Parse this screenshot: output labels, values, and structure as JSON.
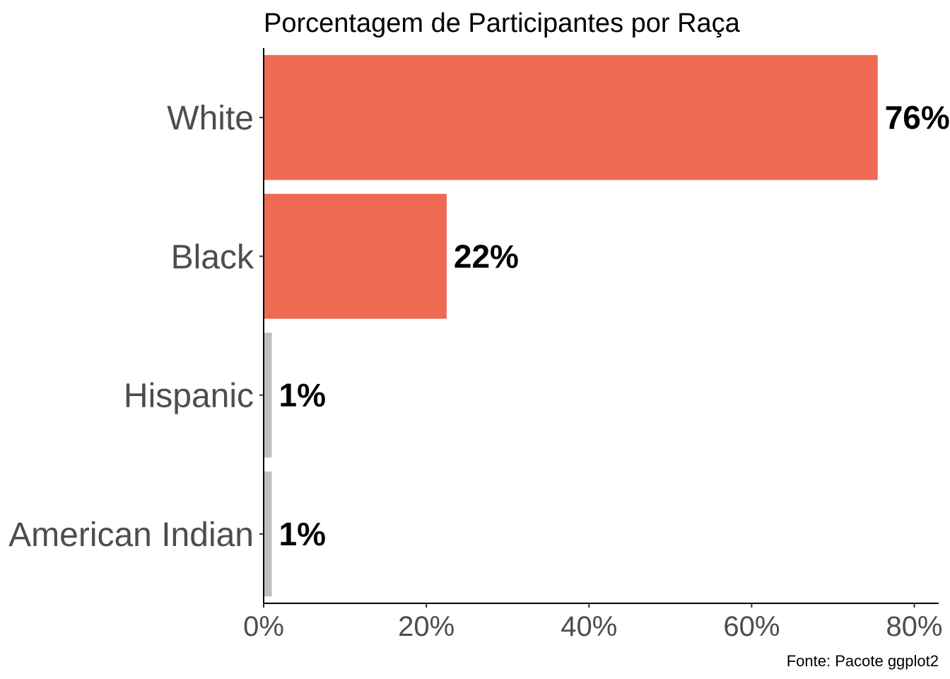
{
  "chart_data": {
    "type": "bar",
    "orientation": "horizontal",
    "title": "Porcentagem de Participantes por Raça",
    "caption": "Fonte: Pacote ggplot2",
    "categories": [
      "White",
      "Black",
      "Hispanic",
      "American Indian"
    ],
    "values": [
      0.755,
      0.225,
      0.01,
      0.01
    ],
    "value_labels": [
      "76%",
      "22%",
      "1%",
      "1%"
    ],
    "bar_colors": [
      "#ee6a53",
      "#ee6a53",
      "#bebebe",
      "#bebebe"
    ],
    "xlabel": "",
    "ylabel": "",
    "xlim": [
      0,
      0.83
    ],
    "x_ticks": [
      0,
      0.2,
      0.4,
      0.6,
      0.8
    ],
    "x_tick_labels": [
      "0%",
      "20%",
      "40%",
      "60%",
      "80%"
    ],
    "grid": false,
    "legend": "none"
  }
}
